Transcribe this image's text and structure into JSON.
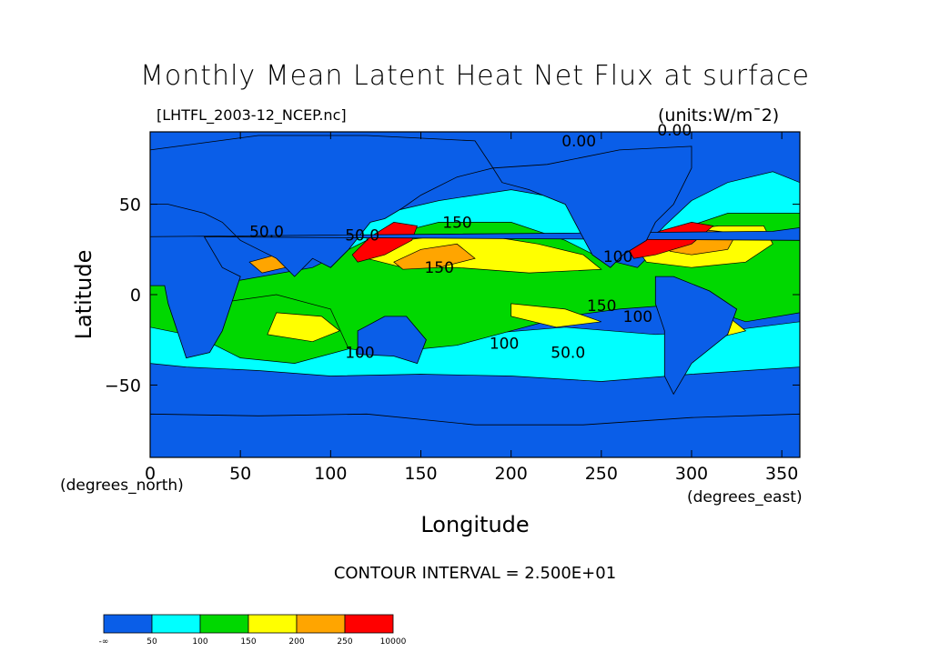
{
  "chart_data": {
    "type": "heatmap",
    "title": "Monthly Mean Latent Heat Net Flux at surface",
    "subtitle": "[LHTFL_2003-12_NCEP.nc]",
    "units_label": "(units:W/m¯2)",
    "xlabel": "Longitude",
    "ylabel": "Latitude",
    "x_unit_label": "(degrees_east)",
    "y_unit_label": "(degrees_north)",
    "xlim": [
      0,
      360
    ],
    "ylim": [
      -90,
      90
    ],
    "x_ticks": [
      "0",
      "50",
      "100",
      "150",
      "200",
      "250",
      "300",
      "350"
    ],
    "x_tick_values": [
      0,
      50,
      100,
      150,
      200,
      250,
      300,
      350
    ],
    "y_ticks": [
      "50",
      "0",
      "−50"
    ],
    "y_tick_values": [
      50,
      0,
      -50
    ],
    "contour_interval_label": "CONTOUR INTERVAL = 2.500E+01",
    "contour_labels": [
      "0.00",
      "0.00",
      "50.0",
      "50.0",
      "50.0",
      "100",
      "100",
      "100",
      "100",
      "150",
      "150",
      "150"
    ],
    "colorbar": {
      "bins": [
        {
          "label": "-∞",
          "color": "#0a5ee8"
        },
        {
          "label": "50",
          "color": "#00ffff"
        },
        {
          "label": "100",
          "color": "#00d800"
        },
        {
          "label": "150",
          "color": "#ffff00"
        },
        {
          "label": "200",
          "color": "#ffa500"
        },
        {
          "label": "250",
          "color": "#ff0000"
        }
      ],
      "end_label": "10000"
    },
    "colors": {
      "low": "#0a5ee8",
      "c50": "#00ffff",
      "c100": "#00d800",
      "c150": "#ffff00",
      "c200": "#ffa500",
      "c250": "#ff0000"
    }
  }
}
